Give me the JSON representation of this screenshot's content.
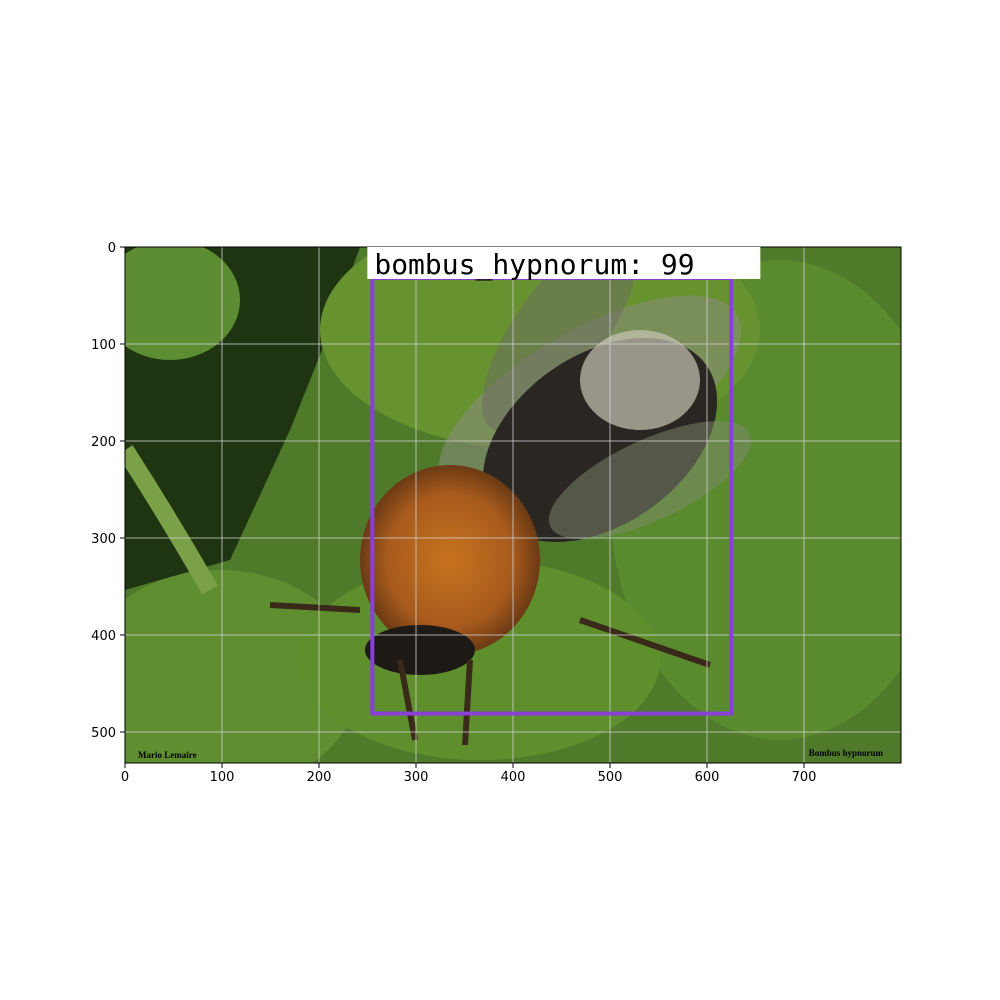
{
  "chart_data": {
    "type": "image",
    "xlim": [
      0,
      800
    ],
    "ylim": [
      532,
      0
    ],
    "xticks": [
      0,
      100,
      200,
      300,
      400,
      500,
      600,
      700
    ],
    "yticks": [
      0,
      100,
      200,
      300,
      400,
      500
    ],
    "grid": true,
    "box": {
      "xmin": 255,
      "ymin": 32,
      "xmax": 625,
      "ymax": 481,
      "color": "#8a3fd6",
      "label": "bombus_hypnorum: 99"
    },
    "image_texts": [
      "Mario Lemaire",
      "Bombus hypnorum"
    ]
  }
}
